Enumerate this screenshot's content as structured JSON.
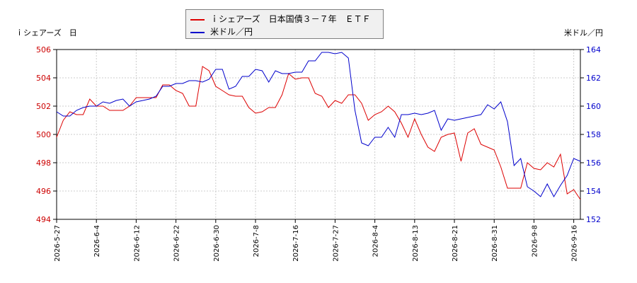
{
  "chart_data": {
    "type": "line",
    "title": "",
    "ylabel_left": "ｉシェアーズ　日",
    "ylabel_right": "米ドル／円",
    "y_left_lim": [
      494,
      506
    ],
    "y_left_ticks": [
      494,
      496,
      498,
      500,
      502,
      504,
      506
    ],
    "y_right_lim": [
      152,
      164
    ],
    "y_right_ticks": [
      152,
      154,
      156,
      158,
      160,
      162,
      164
    ],
    "x_ticks": [
      "2026-5-27",
      "2026-6-4",
      "2026-6-12",
      "2026-6-22",
      "2026-6-30",
      "2026-7-8",
      "2026-7-16",
      "2026-7-27",
      "2026-8-4",
      "2026-8-13",
      "2026-8-21",
      "2026-8-31",
      "2026-9-8",
      "2026-9-16"
    ],
    "x_tick_index": [
      0,
      6,
      12,
      18,
      24,
      30,
      36,
      42,
      48,
      54,
      60,
      66,
      72,
      78
    ],
    "x_count": 80,
    "grid": true,
    "legend_position": "top-center",
    "series": [
      {
        "name": "ｉシェアーズ　日本国債３－７年　ＥＴＦ",
        "axis": "left",
        "color": "#dd0000",
        "values": [
          499.8,
          501.0,
          501.6,
          501.4,
          501.4,
          502.5,
          502.0,
          502.0,
          501.7,
          501.7,
          501.7,
          502.0,
          502.6,
          502.6,
          502.6,
          502.6,
          503.5,
          503.5,
          503.1,
          502.9,
          502.0,
          502.0,
          504.8,
          504.5,
          503.4,
          503.1,
          502.8,
          502.7,
          502.7,
          501.9,
          501.5,
          501.6,
          501.9,
          501.9,
          502.8,
          504.3,
          503.9,
          504.0,
          504.0,
          502.9,
          502.7,
          501.9,
          502.4,
          502.2,
          502.8,
          502.8,
          502.2,
          501.0,
          501.4,
          501.6,
          502.0,
          501.6,
          500.8,
          499.8,
          501.1,
          500.0,
          499.1,
          498.8,
          499.8,
          500.0,
          500.1,
          498.1,
          500.1,
          500.4,
          499.3,
          499.1,
          498.9,
          497.7,
          496.2,
          496.2,
          496.2,
          498.0,
          497.6,
          497.5,
          498.0,
          497.7,
          498.6,
          495.8,
          496.1,
          495.4
        ]
      },
      {
        "name": "米ドル／円",
        "axis": "right",
        "color": "#0000cc",
        "values": [
          159.6,
          159.3,
          159.3,
          159.7,
          159.9,
          160.0,
          160.0,
          160.3,
          160.2,
          160.4,
          160.5,
          160.0,
          160.3,
          160.4,
          160.5,
          160.7,
          161.4,
          161.4,
          161.6,
          161.6,
          161.8,
          161.8,
          161.7,
          161.9,
          162.6,
          162.6,
          161.2,
          161.4,
          162.1,
          162.1,
          162.6,
          162.5,
          161.7,
          162.5,
          162.3,
          162.3,
          162.4,
          162.4,
          163.2,
          163.2,
          163.8,
          163.8,
          163.7,
          163.8,
          163.4,
          159.7,
          157.4,
          157.2,
          157.8,
          157.8,
          158.5,
          157.8,
          159.4,
          159.4,
          159.5,
          159.4,
          159.5,
          159.7,
          158.3,
          159.1,
          159.0,
          159.1,
          159.2,
          159.3,
          159.4,
          160.1,
          159.8,
          160.3,
          158.9,
          155.8,
          156.3,
          154.3,
          154.0,
          153.6,
          154.5,
          153.6,
          154.4,
          155.1,
          156.3,
          156.1
        ]
      }
    ]
  }
}
